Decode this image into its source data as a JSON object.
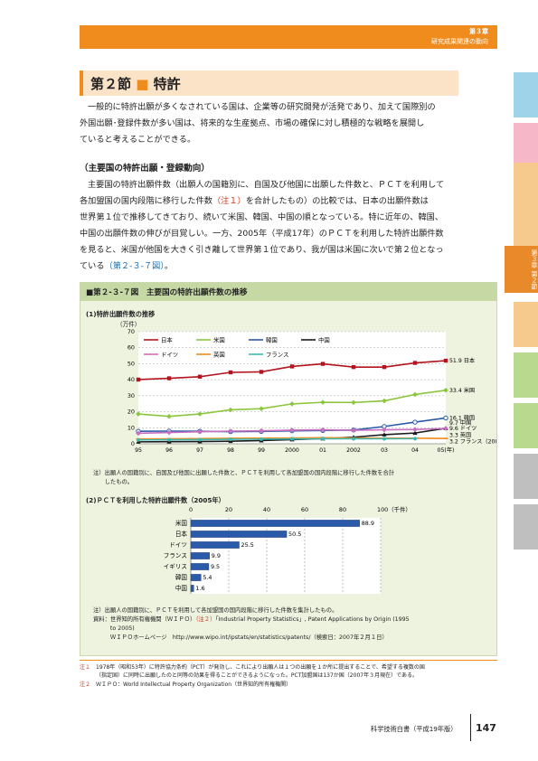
{
  "header": {
    "chapter": "第３章",
    "chapter_sub": "研究成果関連の動向"
  },
  "side_tab": {
    "label": "第３章 第２節"
  },
  "section": {
    "number": "第２節",
    "title": "特許"
  },
  "intro": {
    "line1": "一般的に特許出願が多くなされている国は、企業等の研究開発が活発であり、加えて国際別の",
    "line2": "外国出願･登録件数が多い国は、将来的な生産拠点、市場の確保に対し積極的な戦略を展開し",
    "line3": "ていると考えることができる。"
  },
  "subheading": "（主要国の特許出願・登録動向）",
  "body": {
    "l1": "主要国の特許出願件数（出願人の国籍別に、自国及び他国に出願した件数と、ＰＣＴを利用して",
    "l2a": "各加盟国の国内段階に移行した件数",
    "l2b": "（注１）",
    "l2c": "を合計したもの）の比較では、日本の出願件数は",
    "l3": "世界第１位で推移してきており、続いて米国、韓国、中国の順となっている。特に近年の、韓国、",
    "l4": "中国の出願件数の伸びが目覚しい。一方、2005年（平成17年）のＰＣＴを利用した特許出願件数",
    "l5": "を見ると、米国が他国を大きく引き離して世界第１位であり、我が国は米国に次いで第２位となっ",
    "l6a": "ている",
    "l6b": "（第２-３-７図）",
    "l6c": "。"
  },
  "figure": {
    "title": "■第２-３-７図　主要国の特許出願件数の推移",
    "sub1": "(1)特許出願件数の推移",
    "unit1": "（万件）",
    "note1a": "注）出願人の国籍別に、自国及び他国に出願した件数と、ＰＣＴを利用して各加盟国の国内段階に移行した件数を合計",
    "note1b": "　　したもの。",
    "sub2": "(2)ＰＣＴを利用した特許出願件数（2005年）",
    "unit2": "100（千件）",
    "note2": "注）出願人の国籍別に、ＰＣＴを利用して各加盟国の国内段階に移行した件数を集計したもの。",
    "src1a": "資料：世界知的所有権機関（ＷＩＰＯ）",
    "src1b": "（注２）",
    "src1c": "「Industrial Property Statistics」, Patent Applications by Origin (1995",
    "src2": "　　　to 2005)",
    "src3": "　　　ＷＩＰＯホームページ　http://www.wipo.int/ipstats/en/statistics/patents/（検索日：2007年２月１日）"
  },
  "chart_data": [
    {
      "type": "line",
      "title": "(1)特許出願件数の推移",
      "ylabel": "（万件）",
      "xlabel": "",
      "x": [
        "95",
        "96",
        "97",
        "98",
        "99",
        "2000",
        "01",
        "2002",
        "03",
        "04",
        "05(年)"
      ],
      "ylim": [
        0,
        70
      ],
      "yticks": [
        0,
        10,
        20,
        30,
        40,
        50,
        60,
        70
      ],
      "grid": true,
      "legend": "top",
      "series": [
        {
          "name": "日本",
          "color": "#b3141e",
          "marker": "square",
          "values": [
            40.1,
            40.9,
            41.9,
            44.6,
            44.9,
            48.3,
            49.9,
            47.9,
            47.9,
            50.5,
            51.9
          ],
          "end_label": "51.9 日本"
        },
        {
          "name": "米国",
          "color": "#8cc63f",
          "marker": "diamond",
          "values": [
            18.6,
            17.1,
            18.6,
            21.2,
            21.9,
            24.9,
            25.9,
            25.8,
            26.8,
            30.8,
            33.4
          ],
          "end_label": "33.4 米国"
        },
        {
          "name": "韓国",
          "color": "#2a5aa8",
          "marker": "circle-open",
          "values": [
            7.8,
            7.9,
            7.8,
            7.6,
            7.7,
            8.1,
            8.3,
            8.6,
            10.8,
            13.5,
            16.1
          ],
          "end_label": "16.1 韓国"
        },
        {
          "name": "中国",
          "color": "#1a1a1a",
          "marker": "triangle",
          "values": [
            1.2,
            1.3,
            1.4,
            1.6,
            2.0,
            2.6,
            3.2,
            4.1,
            5.7,
            6.7,
            9.7
          ],
          "end_label": "9.7 中国"
        },
        {
          "name": "ドイツ",
          "color": "#c86fc0",
          "marker": "diamond",
          "values": [
            6.5,
            7.0,
            7.5,
            7.9,
            8.1,
            8.5,
            8.7,
            8.4,
            8.7,
            8.9,
            9.6
          ],
          "end_label": "9.6 ドイツ"
        },
        {
          "name": "英国",
          "color": "#f08c1e",
          "marker": "line",
          "values": [
            3.0,
            3.1,
            3.2,
            3.4,
            3.5,
            3.6,
            3.8,
            3.6,
            3.5,
            3.5,
            3.3
          ],
          "end_label": "3.3 英国"
        },
        {
          "name": "フランス",
          "color": "#3fb8b0",
          "marker": "circle",
          "values": [
            2.4,
            2.5,
            2.6,
            2.8,
            2.9,
            3.0,
            3.1,
            3.1,
            3.1,
            3.2,
            null
          ],
          "end_label": "3.2 フランス（2004）"
        }
      ]
    },
    {
      "type": "bar",
      "title": "(2)ＰＣＴを利用した特許出願件数（2005年）",
      "orientation": "horizontal",
      "ylabel": "（千件）",
      "categories": [
        "米国",
        "日本",
        "ドイツ",
        "フランス",
        "イギリス",
        "韓国",
        "中国"
      ],
      "values": [
        88.9,
        50.5,
        25.5,
        9.9,
        9.5,
        5.4,
        1.6
      ],
      "xlim": [
        0,
        100
      ],
      "xticks": [
        0,
        20,
        40,
        60,
        80,
        100
      ],
      "grid": true,
      "color": "#2a5aa8"
    }
  ],
  "footnotes": {
    "n1_tag": "注１",
    "n1_l1": "1978年（昭和53年）に特許協力条約（PCT）が発効し、これにより出願人は１つの出願を１か所に提出することで、希望する複数の国",
    "n1_l2": "（指定国）に同時に出願したのと同等の効果を得ることができるようになった。PCT加盟国は137か国（2007年３月現在）である。",
    "n2_tag": "注２",
    "n2_l1": "ＷＩＰＯ：World Intellectual Property Organization（世界知的所有権機関）"
  },
  "footer": {
    "publication": "科学技術白書（平成19年版）",
    "page": "147"
  },
  "colors": {
    "accent": "#f08c1e",
    "figure_bg": "#edf3df",
    "figure_title_bg": "#c6d8a4"
  }
}
